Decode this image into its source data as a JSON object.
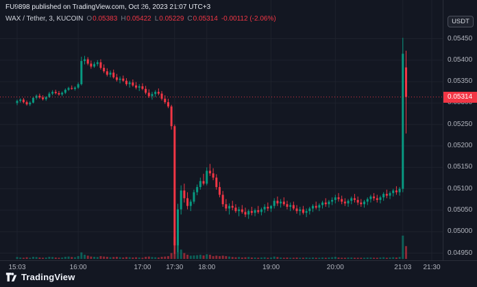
{
  "header": {
    "attribution": "FU9898 published on TradingView.com, Oct 26, 2023 21:07 UTC+3"
  },
  "legend": {
    "symbol": "WAX / Tether, 3, KUCOIN",
    "o_label": "O",
    "o_value": "0.05383",
    "h_label": "H",
    "h_value": "0.05422",
    "l_label": "L",
    "l_value": "0.05229",
    "c_label": "C",
    "c_value": "0.05314",
    "change": "-0.00112 (-2.06%)"
  },
  "price_axis": {
    "unit_button": "USDT",
    "last_price": "0.05314"
  },
  "footer": {
    "brand": "TradingView"
  },
  "colors": {
    "background": "#131722",
    "grid": "#1e222d",
    "up": "#089981",
    "down": "#f23645",
    "text_primary": "#d1d4dc",
    "text_secondary": "#787b86",
    "axis_text": "#b2b5be",
    "volume_up": "rgba(8,153,129,0.55)",
    "volume_down": "rgba(242,54,69,0.55)"
  },
  "chart_data": {
    "type": "candlestick",
    "symbol": "WAX/USDT",
    "exchange": "KUCOIN",
    "interval_minutes": 3,
    "session_start": "15:03",
    "current_price": 0.05314,
    "price_factor": 1e-05,
    "columns": [
      "open",
      "high",
      "low",
      "close",
      "volume_rel"
    ],
    "y_axis": {
      "ticks": [
        "0.05450",
        "0.05400",
        "0.05350",
        "0.05300",
        "0.05250",
        "0.05200",
        "0.05150",
        "0.05100",
        "0.05050",
        "0.05000",
        "0.04950"
      ]
    },
    "x_axis": {
      "ticks": [
        {
          "label": "15:03",
          "minutes": 0
        },
        {
          "label": "16:00",
          "minutes": 57
        },
        {
          "label": "17:00",
          "minutes": 117
        },
        {
          "label": "17:30",
          "minutes": 147
        },
        {
          "label": "18:00",
          "minutes": 177
        },
        {
          "label": "19:00",
          "minutes": 237
        },
        {
          "label": "20:00",
          "minutes": 297
        },
        {
          "label": "21:03",
          "minutes": 360
        },
        {
          "label": "21:30",
          "minutes": 387
        }
      ]
    },
    "candles": [
      [
        5300,
        5308,
        5295,
        5305,
        8
      ],
      [
        5305,
        5311,
        5301,
        5308,
        6
      ],
      [
        5308,
        5312,
        5299,
        5302,
        5
      ],
      [
        5302,
        5306,
        5294,
        5297,
        7
      ],
      [
        5297,
        5304,
        5293,
        5301,
        5
      ],
      [
        5301,
        5315,
        5299,
        5312,
        9
      ],
      [
        5312,
        5320,
        5308,
        5317,
        8
      ],
      [
        5317,
        5322,
        5310,
        5313,
        6
      ],
      [
        5313,
        5318,
        5306,
        5309,
        5
      ],
      [
        5309,
        5316,
        5305,
        5314,
        6
      ],
      [
        5314,
        5326,
        5312,
        5322,
        9
      ],
      [
        5322,
        5330,
        5318,
        5326,
        8
      ],
      [
        5326,
        5331,
        5320,
        5323,
        6
      ],
      [
        5323,
        5328,
        5317,
        5320,
        5
      ],
      [
        5320,
        5327,
        5316,
        5324,
        6
      ],
      [
        5324,
        5334,
        5321,
        5331,
        9
      ],
      [
        5331,
        5338,
        5328,
        5335,
        10
      ],
      [
        5335,
        5341,
        5331,
        5333,
        8
      ],
      [
        5333,
        5339,
        5329,
        5336,
        7
      ],
      [
        5336,
        5348,
        5333,
        5344,
        12
      ],
      [
        5344,
        5408,
        5341,
        5398,
        28
      ],
      [
        5398,
        5410,
        5390,
        5402,
        18
      ],
      [
        5402,
        5407,
        5388,
        5392,
        14
      ],
      [
        5392,
        5399,
        5380,
        5385,
        10
      ],
      [
        5385,
        5396,
        5382,
        5391,
        9
      ],
      [
        5391,
        5400,
        5386,
        5395,
        8
      ],
      [
        5395,
        5402,
        5378,
        5382,
        12
      ],
      [
        5382,
        5390,
        5370,
        5374,
        10
      ],
      [
        5374,
        5381,
        5362,
        5366,
        9
      ],
      [
        5366,
        5376,
        5360,
        5371,
        7
      ],
      [
        5371,
        5378,
        5357,
        5360,
        8
      ],
      [
        5360,
        5368,
        5350,
        5354,
        9
      ],
      [
        5354,
        5362,
        5346,
        5357,
        7
      ],
      [
        5357,
        5364,
        5349,
        5352,
        6
      ],
      [
        5352,
        5358,
        5340,
        5344,
        8
      ],
      [
        5344,
        5352,
        5336,
        5348,
        7
      ],
      [
        5348,
        5355,
        5338,
        5341,
        6
      ],
      [
        5341,
        5349,
        5332,
        5336,
        7
      ],
      [
        5336,
        5344,
        5328,
        5339,
        6
      ],
      [
        5339,
        5346,
        5330,
        5333,
        5
      ],
      [
        5333,
        5340,
        5320,
        5324,
        9
      ],
      [
        5324,
        5332,
        5312,
        5316,
        10
      ],
      [
        5316,
        5326,
        5308,
        5321,
        8
      ],
      [
        5321,
        5330,
        5314,
        5326,
        7
      ],
      [
        5326,
        5334,
        5318,
        5322,
        6
      ],
      [
        5322,
        5328,
        5306,
        5310,
        9
      ],
      [
        5310,
        5318,
        5298,
        5302,
        10
      ],
      [
        5302,
        5310,
        5288,
        5292,
        12
      ],
      [
        5292,
        5296,
        5238,
        5246,
        25
      ],
      [
        5246,
        5250,
        4948,
        4968,
        95
      ],
      [
        4968,
        5065,
        4952,
        5052,
        60
      ],
      [
        5052,
        5108,
        5040,
        5096,
        40
      ],
      [
        5096,
        5112,
        5068,
        5078,
        25
      ],
      [
        5078,
        5092,
        5052,
        5060,
        18
      ],
      [
        5060,
        5075,
        5048,
        5070,
        14
      ],
      [
        5070,
        5098,
        5065,
        5092,
        15
      ],
      [
        5092,
        5110,
        5085,
        5104,
        16
      ],
      [
        5104,
        5126,
        5098,
        5118,
        18
      ],
      [
        5118,
        5135,
        5108,
        5112,
        15
      ],
      [
        5112,
        5150,
        5108,
        5142,
        20
      ],
      [
        5142,
        5158,
        5130,
        5136,
        18
      ],
      [
        5136,
        5148,
        5120,
        5126,
        12
      ],
      [
        5126,
        5134,
        5098,
        5104,
        14
      ],
      [
        5104,
        5116,
        5080,
        5086,
        12
      ],
      [
        5086,
        5095,
        5058,
        5064,
        14
      ],
      [
        5064,
        5076,
        5048,
        5054,
        12
      ],
      [
        5054,
        5066,
        5040,
        5060,
        10
      ],
      [
        5060,
        5072,
        5050,
        5056,
        8
      ],
      [
        5056,
        5064,
        5044,
        5048,
        7
      ],
      [
        5048,
        5058,
        5036,
        5052,
        8
      ],
      [
        5052,
        5062,
        5042,
        5046,
        6
      ],
      [
        5046,
        5056,
        5034,
        5040,
        7
      ],
      [
        5040,
        5052,
        5030,
        5048,
        8
      ],
      [
        5048,
        5058,
        5038,
        5044,
        6
      ],
      [
        5044,
        5054,
        5036,
        5050,
        6
      ],
      [
        5050,
        5060,
        5042,
        5046,
        5
      ],
      [
        5046,
        5056,
        5038,
        5052,
        6
      ],
      [
        5052,
        5064,
        5044,
        5058,
        7
      ],
      [
        5058,
        5068,
        5048,
        5054,
        5
      ],
      [
        5054,
        5062,
        5046,
        5060,
        6
      ],
      [
        5060,
        5078,
        5054,
        5072,
        10
      ],
      [
        5072,
        5082,
        5060,
        5066,
        8
      ],
      [
        5066,
        5076,
        5056,
        5070,
        6
      ],
      [
        5070,
        5080,
        5060,
        5064,
        5
      ],
      [
        5064,
        5072,
        5052,
        5058,
        6
      ],
      [
        5058,
        5068,
        5048,
        5062,
        5
      ],
      [
        5062,
        5070,
        5050,
        5054,
        5
      ],
      [
        5054,
        5062,
        5042,
        5048,
        6
      ],
      [
        5048,
        5058,
        5038,
        5052,
        5
      ],
      [
        5052,
        5060,
        5040,
        5044,
        5
      ],
      [
        5044,
        5054,
        5034,
        5048,
        6
      ],
      [
        5048,
        5058,
        5040,
        5054,
        5
      ],
      [
        5054,
        5064,
        5046,
        5060,
        6
      ],
      [
        5060,
        5070,
        5052,
        5056,
        5
      ],
      [
        5056,
        5066,
        5048,
        5062,
        5
      ],
      [
        5062,
        5072,
        5054,
        5068,
        6
      ],
      [
        5068,
        5078,
        5058,
        5064,
        5
      ],
      [
        5064,
        5074,
        5056,
        5070,
        6
      ],
      [
        5070,
        5080,
        5062,
        5074,
        7
      ],
      [
        5074,
        5086,
        5066,
        5080,
        9
      ],
      [
        5080,
        5090,
        5070,
        5076,
        6
      ],
      [
        5076,
        5084,
        5064,
        5070,
        5
      ],
      [
        5070,
        5078,
        5060,
        5066,
        5
      ],
      [
        5066,
        5076,
        5058,
        5072,
        6
      ],
      [
        5072,
        5082,
        5064,
        5078,
        6
      ],
      [
        5078,
        5088,
        5068,
        5074,
        5
      ],
      [
        5074,
        5082,
        5062,
        5068,
        5
      ],
      [
        5068,
        5076,
        5058,
        5064,
        5
      ],
      [
        5064,
        5074,
        5056,
        5070,
        5
      ],
      [
        5070,
        5080,
        5062,
        5076,
        6
      ],
      [
        5076,
        5086,
        5068,
        5082,
        6
      ],
      [
        5082,
        5090,
        5072,
        5078,
        5
      ],
      [
        5078,
        5086,
        5068,
        5074,
        5
      ],
      [
        5074,
        5084,
        5066,
        5080,
        6
      ],
      [
        5080,
        5092,
        5072,
        5088,
        7
      ],
      [
        5088,
        5098,
        5078,
        5084,
        5
      ],
      [
        5084,
        5094,
        5076,
        5090,
        6
      ],
      [
        5090,
        5100,
        5082,
        5096,
        7
      ],
      [
        5096,
        5106,
        5086,
        5092,
        6
      ],
      [
        5092,
        5104,
        5084,
        5100,
        8
      ],
      [
        5100,
        5452,
        5092,
        5415,
        100
      ],
      [
        5383,
        5422,
        5229,
        5314,
        55
      ]
    ]
  }
}
